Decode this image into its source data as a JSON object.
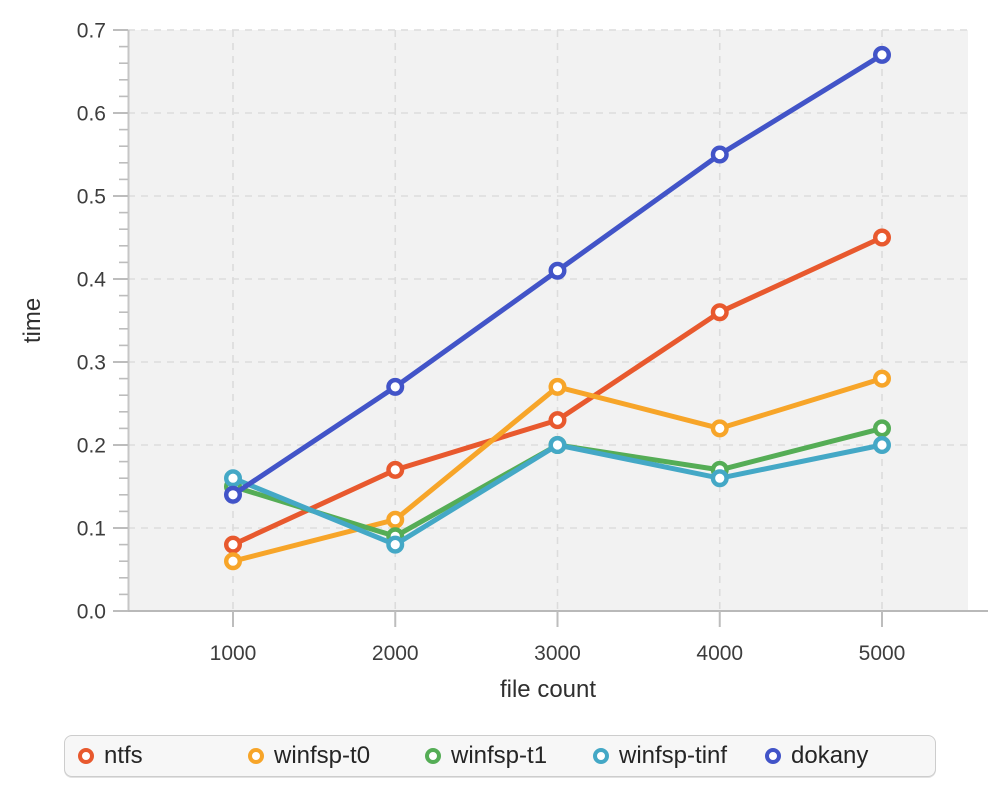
{
  "chart_data": {
    "type": "line",
    "x": [
      1000,
      2000,
      3000,
      4000,
      5000
    ],
    "x_tick_labels": [
      "1000",
      "2000",
      "3000",
      "4000",
      "5000"
    ],
    "y_tick_labels": [
      "0.0",
      "0.1",
      "0.2",
      "0.3",
      "0.4",
      "0.5",
      "0.6",
      "0.7"
    ],
    "xlabel": "file count",
    "ylabel": "time",
    "ylim": [
      0,
      0.7
    ],
    "y_major_step": 0.1,
    "y_minor_step": 0.02,
    "grid": true,
    "grid_style": "dashed",
    "legend_position": "bottom",
    "series": [
      {
        "name": "ntfs",
        "color": "#e8592e",
        "values": [
          0.08,
          0.17,
          0.23,
          0.36,
          0.45
        ]
      },
      {
        "name": "winfsp-t0",
        "color": "#f7a529",
        "values": [
          0.06,
          0.11,
          0.27,
          0.22,
          0.28
        ]
      },
      {
        "name": "winfsp-t1",
        "color": "#55ad56",
        "values": [
          0.15,
          0.09,
          0.2,
          0.17,
          0.22
        ]
      },
      {
        "name": "winfsp-tinf",
        "color": "#44a8c6",
        "values": [
          0.16,
          0.08,
          0.2,
          0.16,
          0.2
        ]
      },
      {
        "name": "dokany",
        "color": "#4254c8",
        "values": [
          0.14,
          0.27,
          0.41,
          0.55,
          0.67
        ]
      }
    ],
    "style_colors": {
      "plot_background": "#f2f2f2",
      "gridline": "#dcdcdc",
      "y_axis_line": "#c6c6c6",
      "x_axis_line": "#b9b9b9",
      "tick": "#bdbdbd",
      "tick_label": "#3d3d3d"
    }
  }
}
